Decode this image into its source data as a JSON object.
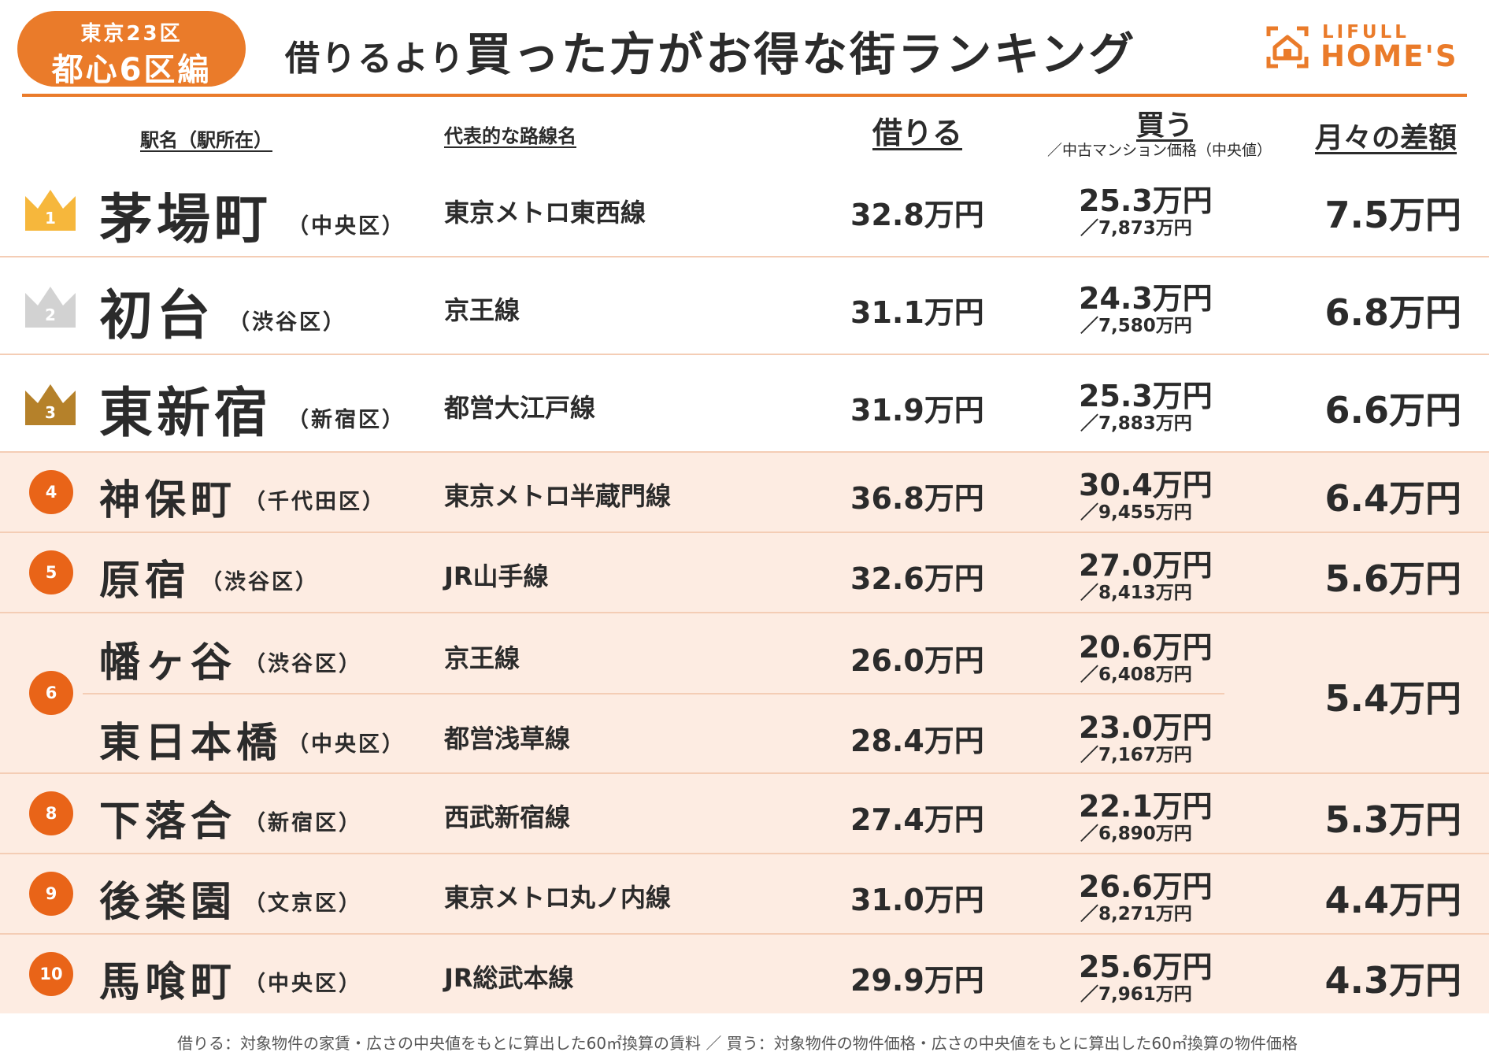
{
  "header": {
    "badge_line1": "東京23区",
    "badge_line2": "都心6区編",
    "title_prefix": "借りるより",
    "title_main": "買った方がお得な街ランキング",
    "logo_top": "LIFULL",
    "logo_bottom": "HOME'S"
  },
  "columns": {
    "station": "駅名（駅所在）",
    "line": "代表的な路線名",
    "rent": "借りる",
    "buy": "買う",
    "buy_sub": "／中古マンション価格（中央値）",
    "diff": "月々の差額"
  },
  "rows": [
    {
      "rank": "1",
      "station": "茅場町",
      "ward": "（中央区）",
      "line": "東京メトロ東西線",
      "rent": "32.8万円",
      "buy": "25.3万円",
      "price": "／7,873万円",
      "diff": "7.5万円"
    },
    {
      "rank": "2",
      "station": "初台",
      "ward": "（渋谷区）",
      "line": "京王線",
      "rent": "31.1万円",
      "buy": "24.3万円",
      "price": "／7,580万円",
      "diff": "6.8万円"
    },
    {
      "rank": "3",
      "station": "東新宿",
      "ward": "（新宿区）",
      "line": "都営大江戸線",
      "rent": "31.9万円",
      "buy": "25.3万円",
      "price": "／7,883万円",
      "diff": "6.6万円"
    },
    {
      "rank": "4",
      "station": "神保町",
      "ward": "（千代田区）",
      "line": "東京メトロ半蔵門線",
      "rent": "36.8万円",
      "buy": "30.4万円",
      "price": "／9,455万円",
      "diff": "6.4万円"
    },
    {
      "rank": "5",
      "station": "原宿",
      "ward": "（渋谷区）",
      "line": "JR山手線",
      "rent": "32.6万円",
      "buy": "27.0万円",
      "price": "／8,413万円",
      "diff": "5.6万円"
    },
    {
      "rank": "6",
      "station": "幡ヶ谷",
      "ward": "（渋谷区）",
      "line": "京王線",
      "rent": "26.0万円",
      "buy": "20.6万円",
      "price": "／6,408万円",
      "diff": "5.4万円"
    },
    {
      "rank": "",
      "station": "東日本橋",
      "ward": "（中央区）",
      "line": "都営浅草線",
      "rent": "28.4万円",
      "buy": "23.0万円",
      "price": "／7,167万円",
      "diff": ""
    },
    {
      "rank": "8",
      "station": "下落合",
      "ward": "（新宿区）",
      "line": "西武新宿線",
      "rent": "27.4万円",
      "buy": "22.1万円",
      "price": "／6,890万円",
      "diff": "5.3万円"
    },
    {
      "rank": "9",
      "station": "後楽園",
      "ward": "（文京区）",
      "line": "東京メトロ丸ノ内線",
      "rent": "31.0万円",
      "buy": "26.6万円",
      "price": "／8,271万円",
      "diff": "4.4万円"
    },
    {
      "rank": "10",
      "station": "馬喰町",
      "ward": "（中央区）",
      "line": "JR総武本線",
      "rent": "29.9万円",
      "buy": "25.6万円",
      "price": "／7,961万円",
      "diff": "4.3万円"
    }
  ],
  "footnote": "借りる：対象物件の家賃・広さの中央値をもとに算出した60㎡換算の賃料 ／ 買う：対象物件の物件価格・広さの中央値をもとに算出した60㎡換算の物件価格",
  "colors": {
    "accent": "#ea7b2a",
    "rank_circle": "#e96418",
    "gold": "#f6b73c",
    "silver": "#d2d2d2",
    "bronze": "#b5812a",
    "pink_row": "#fdece2"
  }
}
